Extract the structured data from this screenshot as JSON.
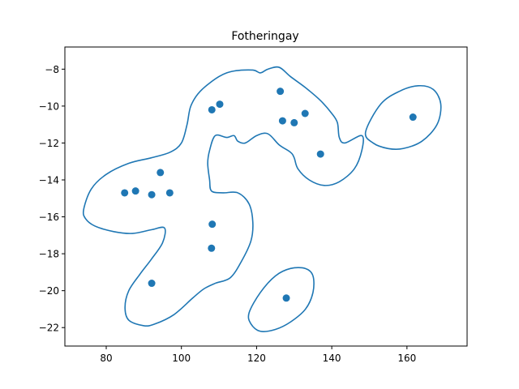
{
  "chart_data": {
    "type": "scatter",
    "title": "Fotheringay",
    "xlabel": "",
    "ylabel": "",
    "xlim": [
      69,
      176
    ],
    "ylim": [
      -23,
      -6.8
    ],
    "xticks": [
      80,
      100,
      120,
      140,
      160
    ],
    "yticks": [
      -22,
      -20,
      -18,
      -16,
      -14,
      -12,
      -10,
      -8
    ],
    "grid": false,
    "legend": "none",
    "color": "#1f77b4",
    "points": [
      {
        "x": 84.9,
        "y": -14.7
      },
      {
        "x": 87.8,
        "y": -14.6
      },
      {
        "x": 92.1,
        "y": -14.8
      },
      {
        "x": 94.4,
        "y": -13.6
      },
      {
        "x": 96.9,
        "y": -14.7
      },
      {
        "x": 92.1,
        "y": -19.6
      },
      {
        "x": 108.1,
        "y": -10.2
      },
      {
        "x": 110.2,
        "y": -9.9
      },
      {
        "x": 108.2,
        "y": -16.4
      },
      {
        "x": 108.0,
        "y": -17.7
      },
      {
        "x": 126.3,
        "y": -9.2
      },
      {
        "x": 126.9,
        "y": -10.8
      },
      {
        "x": 130.0,
        "y": -10.9
      },
      {
        "x": 132.9,
        "y": -10.4
      },
      {
        "x": 137.0,
        "y": -12.6
      },
      {
        "x": 161.6,
        "y": -10.6
      },
      {
        "x": 127.9,
        "y": -20.4
      }
    ],
    "contours": [
      [
        [
          74,
          -15.6
        ],
        [
          76,
          -14.5
        ],
        [
          80,
          -13.7
        ],
        [
          86,
          -13.1
        ],
        [
          92,
          -12.8
        ],
        [
          97,
          -12.5
        ],
        [
          100,
          -12.0
        ],
        [
          101.5,
          -11.0
        ],
        [
          102.5,
          -10.0
        ],
        [
          105,
          -9.2
        ],
        [
          110,
          -8.4
        ],
        [
          114,
          -8.1
        ],
        [
          119,
          -8.05
        ],
        [
          121,
          -8.2
        ],
        [
          123,
          -8.0
        ],
        [
          126,
          -7.9
        ],
        [
          129,
          -8.4
        ],
        [
          133,
          -9.0
        ],
        [
          137,
          -9.7
        ],
        [
          140,
          -10.4
        ],
        [
          141.5,
          -10.9
        ],
        [
          142,
          -11.7
        ],
        [
          143.5,
          -12.0
        ],
        [
          148,
          -11.6
        ],
        [
          148,
          -12.4
        ],
        [
          146,
          -13.4
        ],
        [
          142,
          -14.1
        ],
        [
          138,
          -14.3
        ],
        [
          134,
          -14.0
        ],
        [
          131,
          -13.4
        ],
        [
          130,
          -12.8
        ],
        [
          129,
          -12.5
        ],
        [
          126,
          -12.1
        ],
        [
          123,
          -11.5
        ],
        [
          120,
          -11.6
        ],
        [
          117,
          -12.0
        ],
        [
          115,
          -11.9
        ],
        [
          114,
          -11.6
        ],
        [
          112,
          -11.7
        ],
        [
          109,
          -11.6
        ],
        [
          107.5,
          -12.4
        ],
        [
          107,
          -13.1
        ],
        [
          107.5,
          -14.0
        ],
        [
          108,
          -14.6
        ],
        [
          111,
          -14.7
        ],
        [
          115,
          -14.7
        ],
        [
          118,
          -15.3
        ],
        [
          119,
          -16.3
        ],
        [
          118.5,
          -17.3
        ],
        [
          116,
          -18.4
        ],
        [
          113,
          -19.3
        ],
        [
          109,
          -19.6
        ],
        [
          106,
          -19.9
        ],
        [
          103,
          -20.4
        ],
        [
          98,
          -21.3
        ],
        [
          93,
          -21.8
        ],
        [
          90,
          -21.9
        ],
        [
          86,
          -21.6
        ],
        [
          85,
          -20.9
        ],
        [
          86,
          -20.0
        ],
        [
          89,
          -19.1
        ],
        [
          92,
          -18.3
        ],
        [
          95,
          -17.4
        ],
        [
          95.5,
          -16.6
        ],
        [
          92,
          -16.7
        ],
        [
          87,
          -16.9
        ],
        [
          82,
          -16.8
        ],
        [
          77,
          -16.5
        ],
        [
          74.5,
          -16.1
        ],
        [
          74,
          -15.6
        ]
      ],
      [
        [
          149,
          -11.4
        ],
        [
          153,
          -9.9
        ],
        [
          158,
          -9.2
        ],
        [
          163,
          -8.9
        ],
        [
          167,
          -9.1
        ],
        [
          169,
          -9.9
        ],
        [
          168,
          -11.0
        ],
        [
          164,
          -11.9
        ],
        [
          159,
          -12.3
        ],
        [
          155,
          -12.3
        ],
        [
          151,
          -12.0
        ],
        [
          149,
          -11.4
        ]
      ],
      [
        [
          118,
          -21.2
        ],
        [
          121,
          -20.1
        ],
        [
          125,
          -19.2
        ],
        [
          129,
          -18.8
        ],
        [
          133,
          -18.8
        ],
        [
          135,
          -19.2
        ],
        [
          135,
          -20.1
        ],
        [
          133,
          -21.0
        ],
        [
          129,
          -21.7
        ],
        [
          125,
          -22.1
        ],
        [
          121,
          -22.2
        ],
        [
          118.5,
          -21.8
        ],
        [
          118,
          -21.2
        ]
      ]
    ]
  }
}
